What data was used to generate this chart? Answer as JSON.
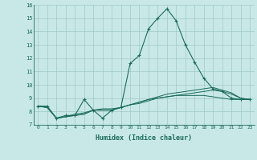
{
  "xlabel": "Humidex (Indice chaleur)",
  "ylabel": "",
  "background_color": "#c8e8e8",
  "grid_color": "#a0c8c8",
  "line_color": "#1a6b5a",
  "xlim": [
    -0.5,
    23.5
  ],
  "ylim": [
    7,
    16
  ],
  "x_ticks": [
    0,
    1,
    2,
    3,
    4,
    5,
    6,
    7,
    8,
    9,
    10,
    11,
    12,
    13,
    14,
    15,
    16,
    17,
    18,
    19,
    20,
    21,
    22,
    23
  ],
  "y_ticks": [
    7,
    8,
    9,
    10,
    11,
    12,
    13,
    14,
    15,
    16
  ],
  "series": [
    [
      8.4,
      8.4,
      7.5,
      7.7,
      7.7,
      8.9,
      8.1,
      7.5,
      8.1,
      8.3,
      11.6,
      12.2,
      14.2,
      15.0,
      15.7,
      14.8,
      13.0,
      11.7,
      10.5,
      9.7,
      9.5,
      9.0,
      8.9,
      8.9
    ],
    [
      8.4,
      8.3,
      7.5,
      7.6,
      7.7,
      7.8,
      8.1,
      8.1,
      8.1,
      8.3,
      8.5,
      8.7,
      8.9,
      9.1,
      9.3,
      9.4,
      9.5,
      9.6,
      9.7,
      9.8,
      9.6,
      9.4,
      9.0,
      8.9
    ],
    [
      8.4,
      8.3,
      7.5,
      7.6,
      7.7,
      7.8,
      8.1,
      8.1,
      8.1,
      8.3,
      8.5,
      8.7,
      8.9,
      9.0,
      9.1,
      9.2,
      9.2,
      9.2,
      9.2,
      9.1,
      9.0,
      8.9,
      8.9,
      8.9
    ],
    [
      8.4,
      8.3,
      7.5,
      7.6,
      7.8,
      7.9,
      8.1,
      8.2,
      8.2,
      8.3,
      8.5,
      8.6,
      8.8,
      9.0,
      9.1,
      9.2,
      9.3,
      9.4,
      9.5,
      9.6,
      9.5,
      9.3,
      9.0,
      8.9
    ]
  ]
}
